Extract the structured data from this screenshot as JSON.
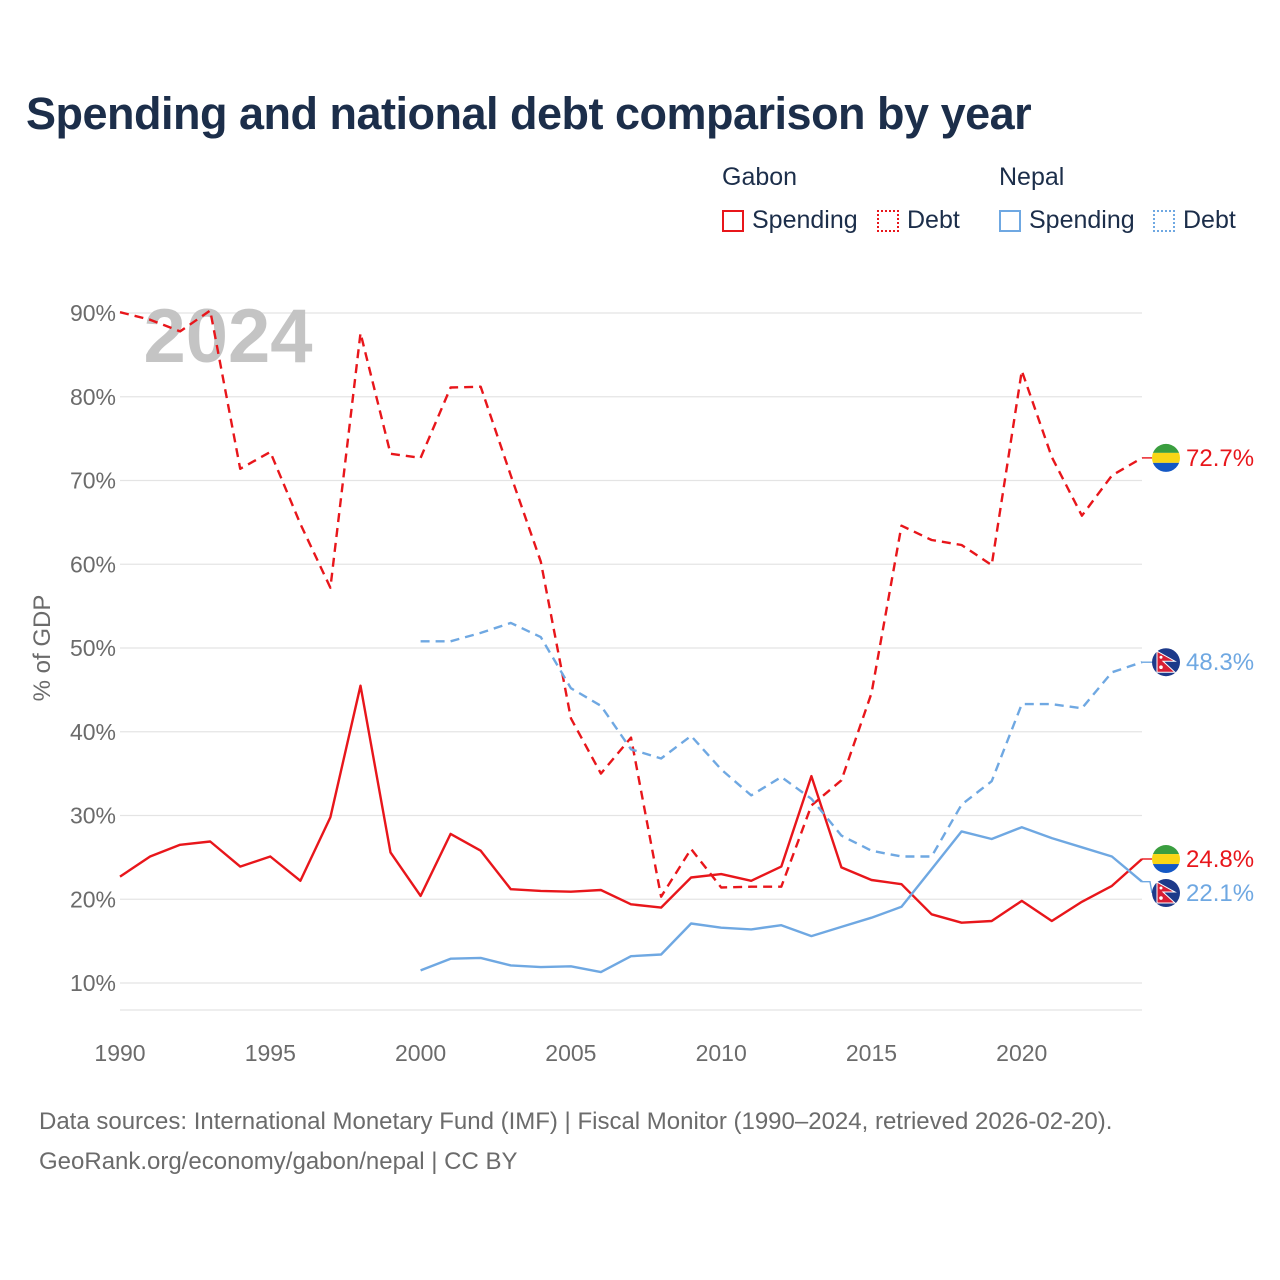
{
  "title": "Spending and national debt comparison by year",
  "legend": {
    "groups": [
      {
        "name": "Gabon",
        "items": [
          {
            "label": "Spending",
            "style": "solid",
            "color": "#e8161b"
          },
          {
            "label": "Debt",
            "style": "dotted",
            "color": "#e8161b"
          }
        ]
      },
      {
        "name": "Nepal",
        "items": [
          {
            "label": "Spending",
            "style": "solid",
            "color": "#6fa8e2"
          },
          {
            "label": "Debt",
            "style": "dotted",
            "color": "#6fa8e2"
          }
        ]
      }
    ]
  },
  "footer": {
    "line1": "Data sources: International Monetary Fund (IMF) | Fiscal Monitor (1990–2024, retrieved 2026-02-20).",
    "line2": "GeoRank.org/economy/gabon/nepal | CC BY"
  },
  "chart_data": {
    "type": "line",
    "title": "Spending and national debt comparison by year",
    "watermark_year": "2024",
    "xlabel": "",
    "ylabel": "% of GDP",
    "xlim": [
      1990,
      2024
    ],
    "ylim": [
      5,
      90
    ],
    "x_ticks": [
      1990,
      1995,
      2000,
      2005,
      2010,
      2015,
      2020
    ],
    "y_ticks": [
      10,
      20,
      30,
      40,
      50,
      60,
      70,
      80,
      90
    ],
    "y_tick_labels": [
      "10%",
      "20%",
      "30%",
      "40%",
      "50%",
      "60%",
      "70%",
      "80%",
      "90%"
    ],
    "grid": true,
    "colors": {
      "gabon": "#e8161b",
      "nepal": "#6fa8e2"
    },
    "series": [
      {
        "name": "Gabon Debt",
        "country": "gabon",
        "style": "dashed",
        "end_label": "72.7%",
        "x": [
          1990,
          1991,
          1992,
          1993,
          1994,
          1995,
          1996,
          1997,
          1998,
          1999,
          2000,
          2001,
          2002,
          2003,
          2004,
          2005,
          2006,
          2007,
          2008,
          2009,
          2010,
          2011,
          2012,
          2013,
          2014,
          2015,
          2016,
          2017,
          2018,
          2019,
          2020,
          2021,
          2022,
          2023,
          2024
        ],
        "values": [
          90.1,
          89.2,
          87.8,
          90.3,
          71.4,
          73.4,
          64.8,
          57.2,
          87.6,
          73.2,
          72.7,
          81.1,
          81.2,
          70.6,
          60.3,
          41.6,
          35.0,
          39.3,
          20.3,
          26.0,
          21.4,
          21.5,
          21.5,
          31.2,
          34.2,
          44.6,
          64.6,
          62.9,
          62.3,
          59.9,
          83.1,
          72.8,
          65.8,
          70.6,
          72.7
        ]
      },
      {
        "name": "Gabon Spending",
        "country": "gabon",
        "style": "solid",
        "end_label": "24.8%",
        "x": [
          1990,
          1991,
          1992,
          1993,
          1994,
          1995,
          1996,
          1997,
          1998,
          1999,
          2000,
          2001,
          2002,
          2003,
          2004,
          2005,
          2006,
          2007,
          2008,
          2009,
          2010,
          2011,
          2012,
          2013,
          2014,
          2015,
          2016,
          2017,
          2018,
          2019,
          2020,
          2021,
          2022,
          2023,
          2024
        ],
        "values": [
          22.7,
          25.1,
          26.5,
          26.9,
          23.9,
          25.1,
          22.2,
          29.8,
          45.5,
          25.6,
          20.4,
          27.8,
          25.8,
          21.2,
          21.0,
          20.9,
          21.1,
          19.4,
          19.0,
          22.6,
          23.0,
          22.2,
          23.9,
          34.7,
          23.8,
          22.3,
          21.8,
          18.2,
          17.2,
          17.4,
          19.8,
          17.4,
          19.7,
          21.6,
          24.8
        ]
      },
      {
        "name": "Nepal Debt",
        "country": "nepal",
        "style": "dashed",
        "end_label": "48.3%",
        "x": [
          2000,
          2001,
          2002,
          2003,
          2004,
          2005,
          2006,
          2007,
          2008,
          2009,
          2010,
          2011,
          2012,
          2013,
          2014,
          2015,
          2016,
          2017,
          2018,
          2019,
          2020,
          2021,
          2022,
          2023,
          2024
        ],
        "values": [
          50.8,
          50.8,
          51.8,
          53.0,
          51.3,
          45.2,
          43.1,
          37.9,
          36.8,
          39.5,
          35.5,
          32.4,
          34.6,
          32.0,
          27.6,
          25.8,
          25.1,
          25.1,
          31.3,
          34.1,
          43.3,
          43.3,
          42.8,
          47.1,
          48.3
        ]
      },
      {
        "name": "Nepal Spending",
        "country": "nepal",
        "style": "solid",
        "end_label": "22.1%",
        "x": [
          2000,
          2001,
          2002,
          2003,
          2004,
          2005,
          2006,
          2007,
          2008,
          2009,
          2010,
          2011,
          2012,
          2013,
          2014,
          2015,
          2016,
          2017,
          2018,
          2019,
          2020,
          2021,
          2022,
          2023,
          2024
        ],
        "values": [
          11.5,
          12.9,
          13.0,
          12.1,
          11.9,
          12.0,
          11.3,
          13.2,
          13.4,
          17.1,
          16.6,
          16.4,
          16.9,
          15.6,
          16.7,
          17.8,
          19.1,
          23.6,
          28.1,
          27.2,
          28.6,
          27.3,
          26.2,
          25.1,
          22.1
        ]
      }
    ]
  }
}
